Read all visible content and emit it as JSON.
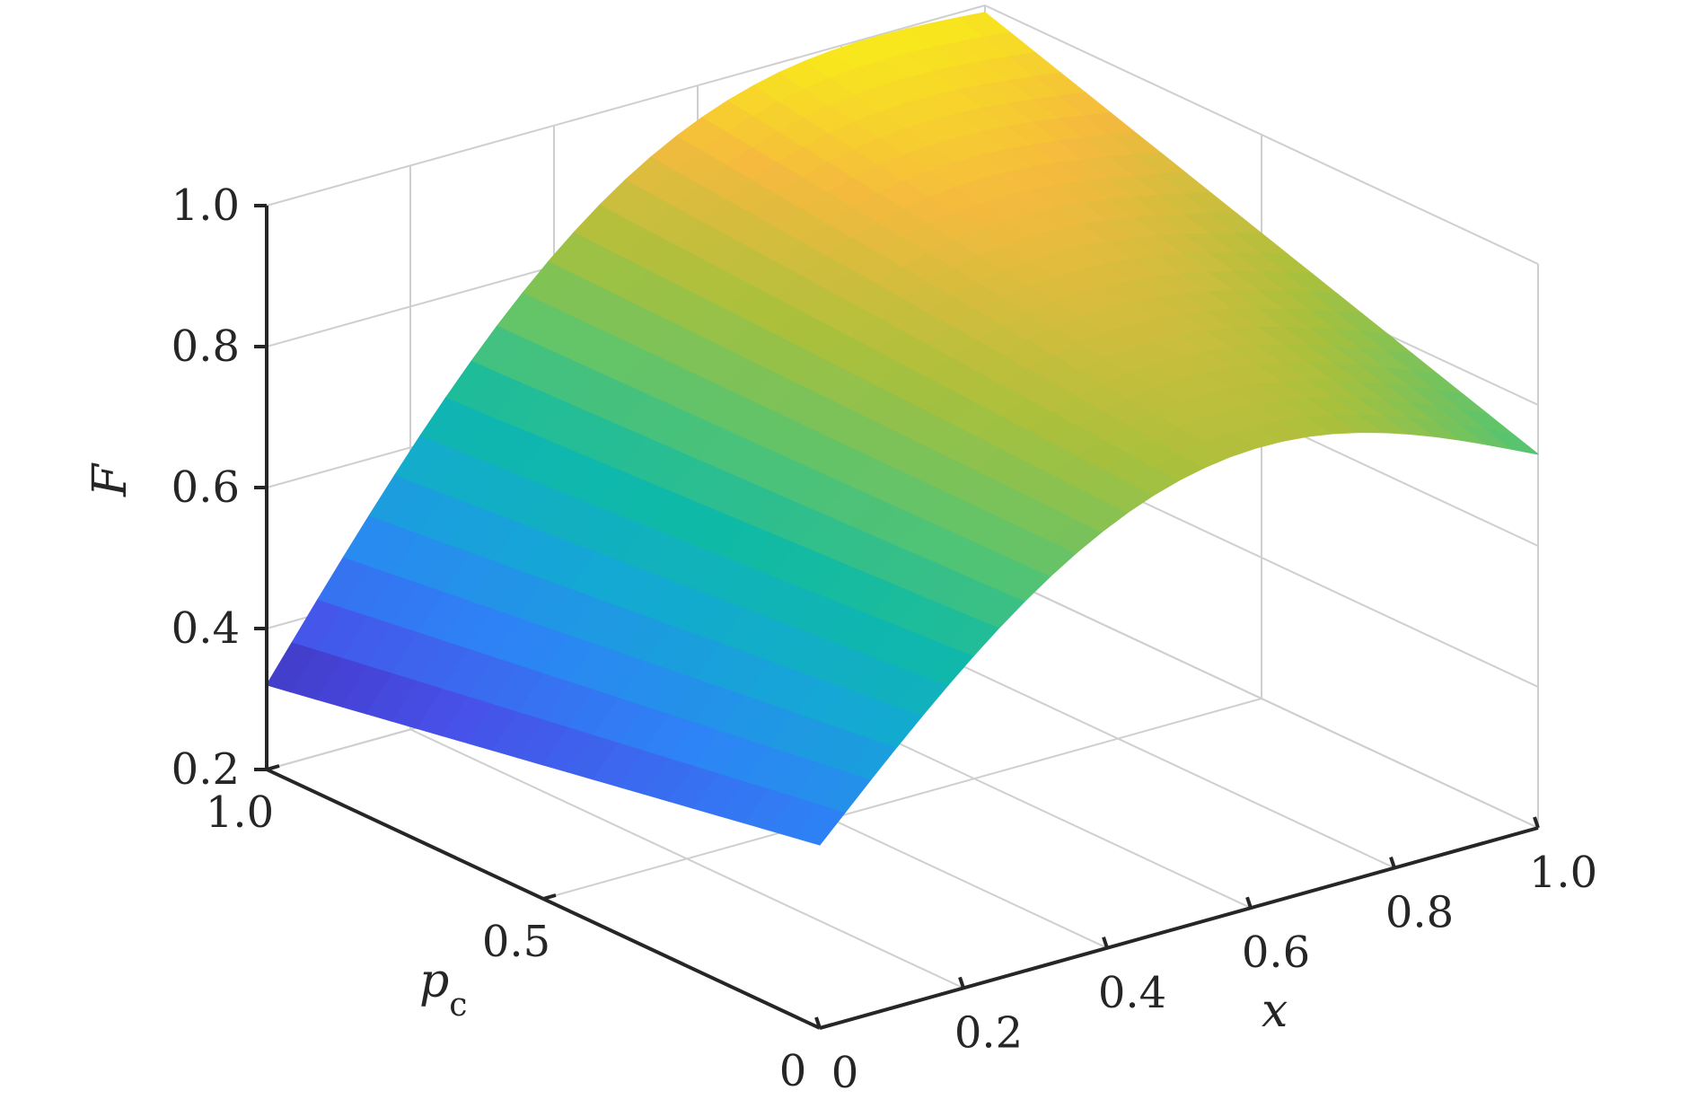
{
  "chart_data": {
    "type": "surface",
    "title": "",
    "xlabel": "x",
    "ylabel_main": "p",
    "ylabel_sub": "c",
    "zlabel": "F",
    "xlim": [
      0,
      1
    ],
    "ylim": [
      0,
      1
    ],
    "zlim": [
      0.2,
      1.0
    ],
    "x_ticks": [
      {
        "value": 0,
        "label": "0"
      },
      {
        "value": 0.2,
        "label": "0.2"
      },
      {
        "value": 0.4,
        "label": "0.4"
      },
      {
        "value": 0.6,
        "label": "0.6"
      },
      {
        "value": 0.8,
        "label": "0.8"
      },
      {
        "value": 1.0,
        "label": "1.0"
      }
    ],
    "y_ticks": [
      {
        "value": 0,
        "label": "0"
      },
      {
        "value": 0.5,
        "label": "0.5"
      },
      {
        "value": 1.0,
        "label": "1.0"
      }
    ],
    "z_ticks": [
      {
        "value": 0.2,
        "label": "0.2"
      },
      {
        "value": 0.4,
        "label": "0.4"
      },
      {
        "value": 0.6,
        "label": "0.6"
      },
      {
        "value": 0.8,
        "label": "0.8"
      },
      {
        "value": 1.0,
        "label": "1.0"
      }
    ],
    "grid": true,
    "colormap": "parula",
    "corner_values": [
      {
        "x": 0,
        "pc": 1.0,
        "F": 0.32
      },
      {
        "x": 1.0,
        "pc": 1.0,
        "F": 0.99
      },
      {
        "x": 1.0,
        "pc": 0,
        "F": 0.73
      },
      {
        "x": 0,
        "pc": 0,
        "F": 0.46
      }
    ]
  }
}
